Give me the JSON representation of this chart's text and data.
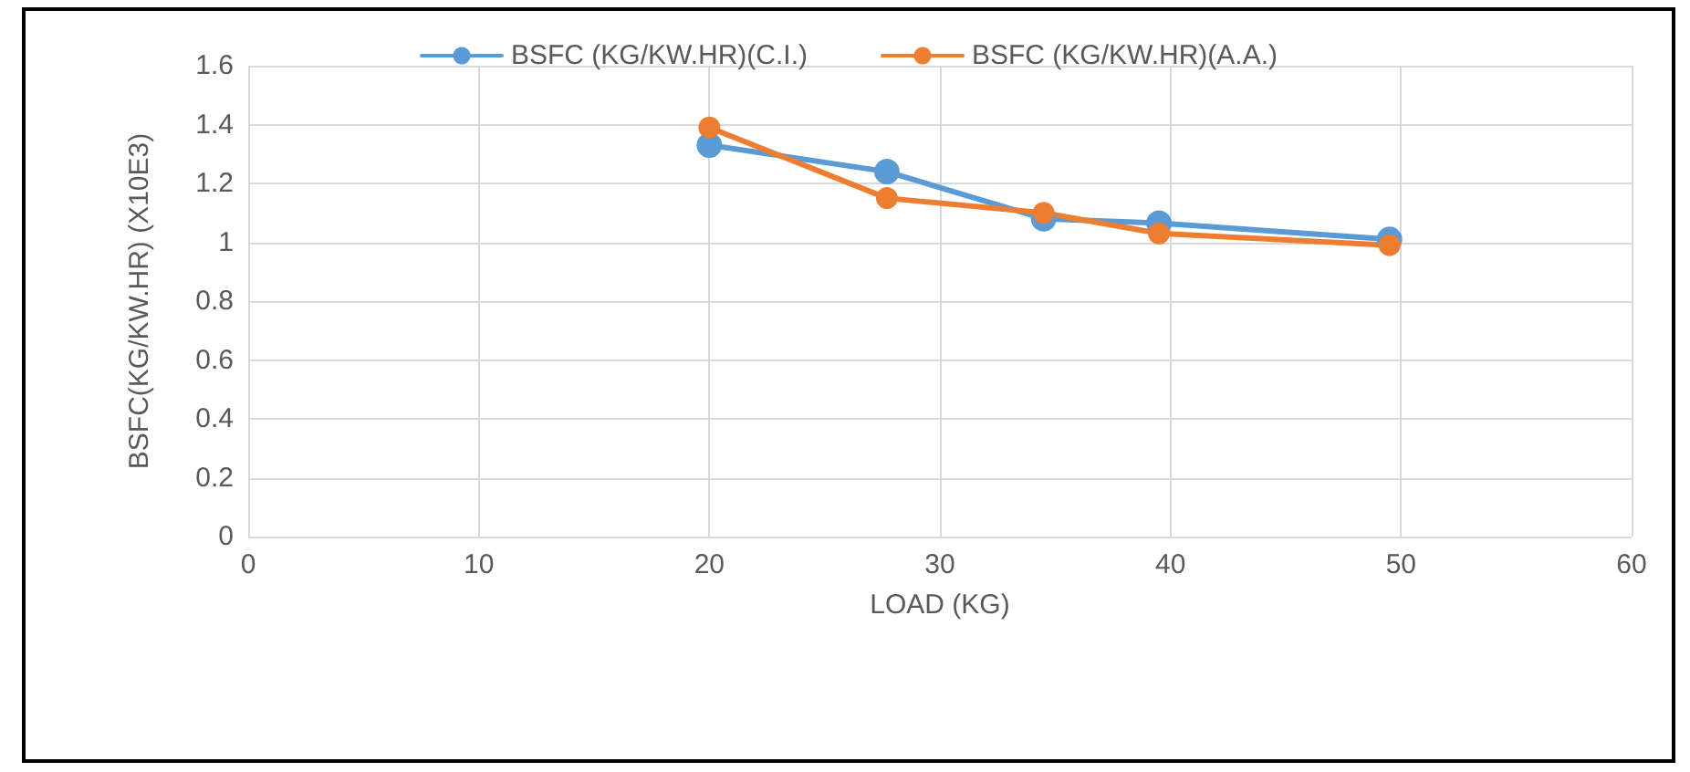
{
  "chart_data": {
    "type": "line",
    "xlabel": "LOAD (KG)",
    "ylabel": "BSFC(KG/KW.HR) (X10E3)",
    "xlim": [
      0,
      60
    ],
    "xticks": [
      0,
      10,
      20,
      30,
      40,
      50,
      60
    ],
    "ylim": [
      0,
      1.6
    ],
    "yticks": [
      0,
      0.2,
      0.4,
      0.6,
      0.8,
      1,
      1.2,
      1.4,
      1.6
    ],
    "x": [
      20,
      27.7,
      34.5,
      39.5,
      49.5
    ],
    "series": [
      {
        "name": "BSFC (KG/KW.HR)(C.I.)",
        "color": "#5b9bd5",
        "values": [
          1.33,
          1.24,
          1.08,
          1.065,
          1.01
        ]
      },
      {
        "name": "BSFC (KG/KW.HR)(A.A.)",
        "color": "#ed7d31",
        "values": [
          1.39,
          1.15,
          1.1,
          1.03,
          0.99
        ]
      }
    ],
    "grid": true,
    "legend": "top",
    "marker": "circle",
    "line_style": "solid"
  }
}
